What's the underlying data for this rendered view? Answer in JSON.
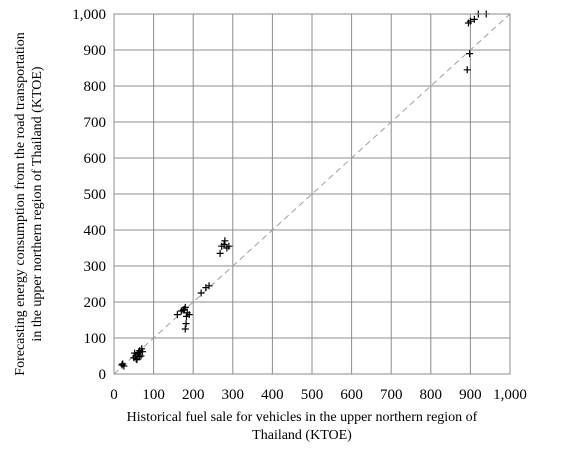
{
  "chart_data": {
    "type": "scatter",
    "xlabel": [
      "Historical fuel sale for vehicles in the upper northern region of",
      "Thailand (KTOE)"
    ],
    "ylabel": [
      "Forecasting energy consumption from the road transportation",
      "in the upper northern region of Thailand (KTOE)"
    ],
    "xlim": [
      0,
      1000
    ],
    "ylim": [
      0,
      1000
    ],
    "x_tick_labels": [
      "0",
      "100",
      "200",
      "300",
      "400",
      "500",
      "600",
      "700",
      "800",
      "900",
      "1,000"
    ],
    "y_tick_labels": [
      "0",
      "100",
      "200",
      "300",
      "400",
      "500",
      "600",
      "700",
      "800",
      "900",
      "1,000"
    ],
    "grid": true,
    "reference_line": {
      "style": "dashed",
      "color": "#a0a0a0",
      "from": [
        0,
        0
      ],
      "to": [
        1000,
        1000
      ]
    },
    "marker": "+",
    "marker_color": "#000000",
    "series": [
      {
        "points": [
          [
            20,
            25
          ],
          [
            25,
            22
          ],
          [
            22,
            28
          ],
          [
            50,
            45
          ],
          [
            55,
            50
          ],
          [
            58,
            40
          ],
          [
            60,
            55
          ],
          [
            62,
            60
          ],
          [
            65,
            65
          ],
          [
            68,
            50
          ],
          [
            70,
            70
          ],
          [
            52,
            58
          ],
          [
            56,
            42
          ],
          [
            64,
            48
          ],
          [
            72,
            62
          ],
          [
            160,
            165
          ],
          [
            170,
            175
          ],
          [
            175,
            178
          ],
          [
            178,
            180
          ],
          [
            180,
            185
          ],
          [
            183,
            160
          ],
          [
            185,
            170
          ],
          [
            190,
            165
          ],
          [
            182,
            140
          ],
          [
            180,
            125
          ],
          [
            220,
            225
          ],
          [
            232,
            240
          ],
          [
            240,
            245
          ],
          [
            268,
            335
          ],
          [
            272,
            355
          ],
          [
            278,
            360
          ],
          [
            280,
            370
          ],
          [
            285,
            350
          ],
          [
            290,
            355
          ],
          [
            895,
            975
          ],
          [
            898,
            890
          ],
          [
            892,
            845
          ],
          [
            900,
            980
          ],
          [
            910,
            985
          ],
          [
            920,
            1000
          ],
          [
            940,
            1000
          ]
        ]
      }
    ]
  }
}
